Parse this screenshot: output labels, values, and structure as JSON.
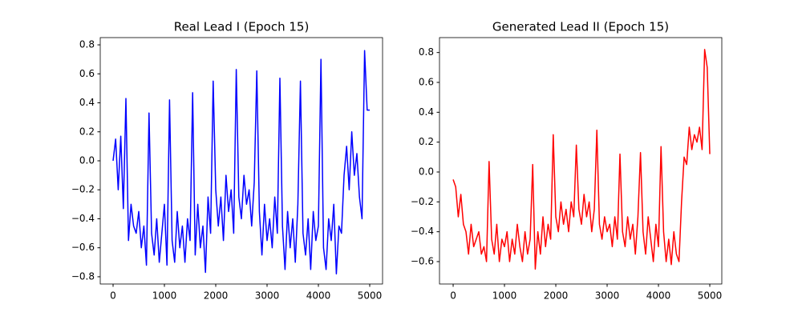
{
  "chart_data": [
    {
      "type": "line",
      "title": "Real Lead I (Epoch 15)",
      "color": "#0000ff",
      "x": [
        0,
        50,
        100,
        150,
        200,
        250,
        300,
        350,
        400,
        450,
        500,
        550,
        600,
        650,
        700,
        750,
        800,
        850,
        900,
        950,
        1000,
        1050,
        1100,
        1150,
        1200,
        1250,
        1300,
        1350,
        1400,
        1450,
        1500,
        1550,
        1600,
        1650,
        1700,
        1750,
        1800,
        1850,
        1900,
        1950,
        2000,
        2050,
        2100,
        2150,
        2200,
        2250,
        2300,
        2350,
        2400,
        2450,
        2500,
        2550,
        2600,
        2650,
        2700,
        2750,
        2800,
        2850,
        2900,
        2950,
        3000,
        3050,
        3100,
        3150,
        3200,
        3250,
        3300,
        3350,
        3400,
        3450,
        3500,
        3550,
        3600,
        3650,
        3700,
        3750,
        3800,
        3850,
        3900,
        3950,
        4000,
        4050,
        4100,
        4150,
        4200,
        4250,
        4300,
        4350,
        4400,
        4450,
        4500,
        4550,
        4600,
        4650,
        4700,
        4750,
        4800,
        4850,
        4900,
        4950,
        5000
      ],
      "values": [
        0.0,
        0.15,
        -0.2,
        0.17,
        -0.33,
        0.43,
        -0.55,
        -0.3,
        -0.45,
        -0.5,
        -0.35,
        -0.6,
        -0.45,
        -0.72,
        0.33,
        -0.5,
        -0.65,
        -0.4,
        -0.7,
        -0.5,
        -0.3,
        -0.72,
        0.42,
        -0.55,
        -0.7,
        -0.35,
        -0.6,
        -0.45,
        -0.7,
        -0.4,
        -0.55,
        0.47,
        -0.65,
        -0.3,
        -0.6,
        -0.45,
        -0.77,
        -0.25,
        -0.5,
        0.55,
        -0.2,
        -0.45,
        -0.25,
        -0.55,
        -0.1,
        -0.35,
        -0.2,
        -0.5,
        0.63,
        -0.25,
        -0.4,
        -0.1,
        -0.3,
        -0.2,
        -0.45,
        -0.15,
        0.62,
        -0.35,
        -0.65,
        -0.3,
        -0.55,
        -0.4,
        -0.6,
        -0.25,
        -0.5,
        0.57,
        -0.45,
        -0.75,
        -0.35,
        -0.6,
        -0.4,
        -0.7,
        -0.3,
        0.55,
        -0.5,
        -0.65,
        -0.4,
        -0.75,
        -0.35,
        -0.55,
        -0.45,
        0.7,
        -0.6,
        -0.75,
        -0.4,
        -0.55,
        -0.3,
        -0.78,
        -0.45,
        -0.5,
        -0.1,
        0.1,
        -0.2,
        0.2,
        -0.1,
        0.05,
        -0.25,
        -0.4,
        0.76,
        0.35,
        0.35
      ],
      "xlim": [
        -250,
        5250
      ],
      "ylim": [
        -0.85,
        0.85
      ],
      "xticks": [
        0,
        1000,
        2000,
        3000,
        4000,
        5000
      ],
      "yticks": [
        {
          "value": -0.8,
          "label": "−0.8"
        },
        {
          "value": -0.6,
          "label": "−0.6"
        },
        {
          "value": -0.4,
          "label": "−0.4"
        },
        {
          "value": -0.2,
          "label": "−0.2"
        },
        {
          "value": 0,
          "label": "0.0"
        },
        {
          "value": 0.2,
          "label": "0.2"
        },
        {
          "value": 0.4,
          "label": "0.4"
        },
        {
          "value": 0.6,
          "label": "0.6"
        },
        {
          "value": 0.8,
          "label": "0.8"
        }
      ]
    },
    {
      "type": "line",
      "title": "Generated Lead II (Epoch 15)",
      "color": "#ff0000",
      "x": [
        0,
        50,
        100,
        150,
        200,
        250,
        300,
        350,
        400,
        450,
        500,
        550,
        600,
        650,
        700,
        750,
        800,
        850,
        900,
        950,
        1000,
        1050,
        1100,
        1150,
        1200,
        1250,
        1300,
        1350,
        1400,
        1450,
        1500,
        1550,
        1600,
        1650,
        1700,
        1750,
        1800,
        1850,
        1900,
        1950,
        2000,
        2050,
        2100,
        2150,
        2200,
        2250,
        2300,
        2350,
        2400,
        2450,
        2500,
        2550,
        2600,
        2650,
        2700,
        2750,
        2800,
        2850,
        2900,
        2950,
        3000,
        3050,
        3100,
        3150,
        3200,
        3250,
        3300,
        3350,
        3400,
        3450,
        3500,
        3550,
        3600,
        3650,
        3700,
        3750,
        3800,
        3850,
        3900,
        3950,
        4000,
        4050,
        4100,
        4150,
        4200,
        4250,
        4300,
        4350,
        4400,
        4450,
        4500,
        4550,
        4600,
        4650,
        4700,
        4750,
        4800,
        4850,
        4900,
        4950,
        5000
      ],
      "values": [
        -0.05,
        -0.1,
        -0.3,
        -0.15,
        -0.35,
        -0.4,
        -0.55,
        -0.35,
        -0.5,
        -0.45,
        -0.4,
        -0.55,
        -0.5,
        -0.6,
        0.07,
        -0.45,
        -0.55,
        -0.35,
        -0.6,
        -0.45,
        -0.5,
        -0.4,
        -0.6,
        -0.45,
        -0.55,
        -0.35,
        -0.5,
        -0.6,
        -0.4,
        -0.55,
        -0.45,
        0.05,
        -0.65,
        -0.4,
        -0.55,
        -0.3,
        -0.5,
        -0.35,
        -0.45,
        0.25,
        -0.3,
        -0.4,
        -0.2,
        -0.35,
        -0.25,
        -0.4,
        -0.2,
        -0.3,
        0.18,
        -0.25,
        -0.35,
        -0.15,
        -0.3,
        -0.2,
        -0.4,
        -0.25,
        0.28,
        -0.35,
        -0.45,
        -0.3,
        -0.4,
        -0.35,
        -0.5,
        -0.3,
        -0.45,
        0.12,
        -0.4,
        -0.5,
        -0.3,
        -0.45,
        -0.35,
        -0.55,
        -0.3,
        0.13,
        -0.4,
        -0.55,
        -0.3,
        -0.45,
        -0.6,
        -0.35,
        -0.5,
        0.17,
        -0.4,
        -0.6,
        -0.45,
        -0.62,
        -0.4,
        -0.55,
        -0.6,
        -0.2,
        0.1,
        0.05,
        0.3,
        0.15,
        0.25,
        0.2,
        0.3,
        0.15,
        0.82,
        0.7,
        0.12
      ],
      "xlim": [
        -266,
        5234
      ],
      "ylim": [
        -0.75,
        0.9
      ],
      "xticks": [
        0,
        1000,
        2000,
        3000,
        4000,
        5000
      ],
      "yticks": [
        {
          "value": -0.6,
          "label": "−0.6"
        },
        {
          "value": -0.4,
          "label": "−0.4"
        },
        {
          "value": -0.2,
          "label": "−0.2"
        },
        {
          "value": 0,
          "label": "0.0"
        },
        {
          "value": 0.2,
          "label": "0.2"
        },
        {
          "value": 0.4,
          "label": "0.4"
        },
        {
          "value": 0.6,
          "label": "0.6"
        },
        {
          "value": 0.8,
          "label": "0.8"
        }
      ]
    }
  ]
}
